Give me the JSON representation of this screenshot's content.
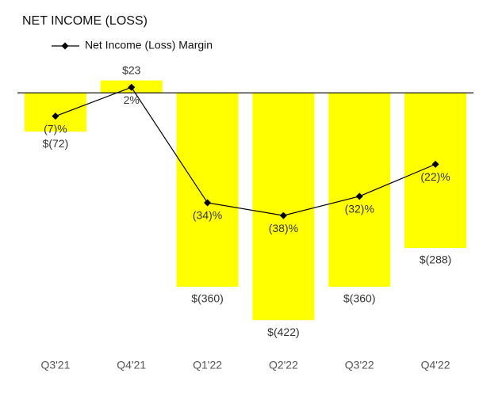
{
  "chart_data": {
    "type": "bar",
    "title": "NET INCOME (LOSS)",
    "categories": [
      "Q3'21",
      "Q4'21",
      "Q1'22",
      "Q2'22",
      "Q3'22",
      "Q4'22"
    ],
    "series": [
      {
        "type": "bar",
        "color": "#ffff00",
        "values": [
          -72,
          23,
          -360,
          -422,
          -360,
          -288
        ],
        "value_labels": [
          "$(72)",
          "$23",
          "$(360)",
          "$(422)",
          "$(360)",
          "$(288)"
        ]
      },
      {
        "type": "line",
        "name": "Net Income (Loss) Margin",
        "color": "#000000",
        "axis": "y2",
        "values": [
          -7,
          2,
          -34,
          -38,
          -32,
          -22
        ],
        "value_labels": [
          "(7)%",
          "2%",
          "(34)%",
          "(38)%",
          "(32)%",
          "(22)%"
        ]
      }
    ],
    "ylim": [
      -460,
      40
    ],
    "y2lim": [
      -77,
      7
    ],
    "grid": false
  }
}
